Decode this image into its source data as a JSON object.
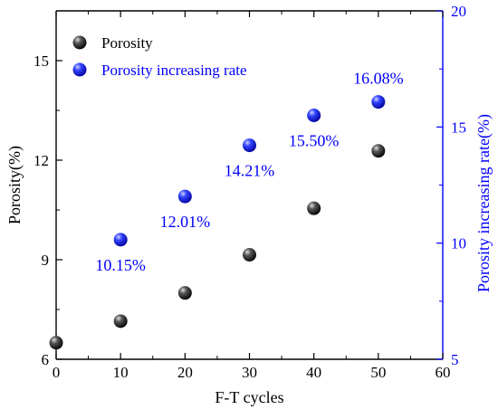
{
  "chart_data": {
    "type": "scatter",
    "title": "",
    "xlabel": "F-T cycles",
    "ylabel_left": "Porosity(%)",
    "ylabel_right": "Porosity increasing rate(%)",
    "xlim": [
      0,
      60
    ],
    "ylim_left": [
      6,
      16.5
    ],
    "ylim_right": [
      5,
      20
    ],
    "x_ticks": [
      0,
      10,
      20,
      30,
      40,
      50,
      60
    ],
    "y_left_ticks": [
      6,
      9,
      12,
      15
    ],
    "y_right_ticks": [
      5,
      10,
      15,
      20
    ],
    "grid": false,
    "legend_position": "top-left",
    "colors": {
      "porosity": "#000000",
      "rate": "#0000ff",
      "right_axis": "#0000ff",
      "left_axis": "#000000"
    },
    "series": [
      {
        "name": "Porosity",
        "axis": "left",
        "x": [
          0,
          10,
          20,
          30,
          40,
          50
        ],
        "y": [
          6.5,
          7.15,
          8.0,
          9.15,
          10.55,
          12.28
        ]
      },
      {
        "name": "Porosity increasing rate",
        "axis": "right",
        "x": [
          10,
          20,
          30,
          40,
          50
        ],
        "y": [
          10.15,
          12.01,
          14.21,
          15.5,
          16.08
        ],
        "labels": [
          "10.15%",
          "12.01%",
          "14.21%",
          "15.50%",
          "16.08%"
        ]
      }
    ]
  }
}
